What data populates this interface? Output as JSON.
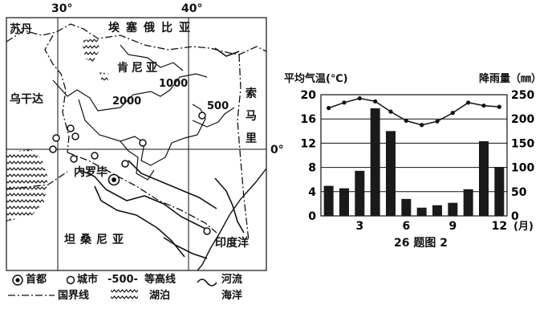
{
  "map": {
    "longitudes": [
      "30°",
      "40°"
    ],
    "latitude_label": "0°",
    "countries": {
      "sudan": "苏丹",
      "ethiopia": "埃塞俄比亚",
      "kenya": "肯尼亚",
      "uganda": "乌干达",
      "somalia": [
        "索",
        "马",
        "里"
      ],
      "tanzania": "坦桑尼亚"
    },
    "city": "内罗毕",
    "ocean": "印度洋",
    "contours": [
      "1000",
      "2000",
      "500"
    ]
  },
  "legend": {
    "capital": "首都",
    "city": "城市",
    "contour_sample": "-500-",
    "contour": "等高线",
    "river": "河流",
    "border": "国界线",
    "lake": "湖泊",
    "ocean": "海洋"
  },
  "chart_data": {
    "type": "bar+line",
    "left_axis_label": "平均气温(℃)",
    "right_axis_label": "降雨量（㎜）",
    "x_unit": "(月)",
    "caption": "26 题图 2",
    "months": [
      1,
      2,
      3,
      4,
      5,
      6,
      7,
      8,
      9,
      10,
      11,
      12
    ],
    "x_ticks": [
      "3",
      "6",
      "9",
      "12"
    ],
    "temperature_ticks": [
      "0",
      "4",
      "8",
      "12",
      "16",
      "20"
    ],
    "temperature_range": [
      0,
      20
    ],
    "rainfall_ticks": [
      "0",
      "50",
      "100",
      "150",
      "200",
      "250"
    ],
    "rainfall_range": [
      0,
      250
    ],
    "temperature": [
      17.8,
      18.7,
      19.4,
      18.9,
      17.2,
      15.7,
      15.0,
      15.6,
      17.0,
      18.7,
      18.2,
      18.0
    ],
    "rainfall": [
      62,
      57,
      93,
      222,
      175,
      35,
      17,
      22,
      27,
      55,
      154,
      101
    ]
  }
}
